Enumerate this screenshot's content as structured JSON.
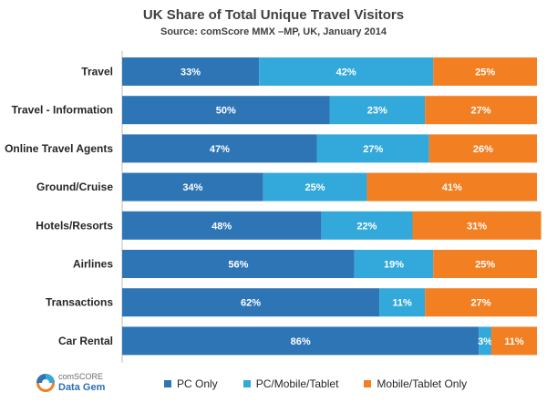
{
  "chart_data": {
    "type": "bar",
    "orientation": "horizontal",
    "stacked": "100%",
    "title": "UK Share of Total Unique Travel Visitors",
    "subtitle": "Source: comScore MMX –MP, UK, January 2014",
    "categories": [
      "Travel",
      "Travel - Information",
      "Online Travel Agents",
      "Ground/Cruise",
      "Hotels/Resorts",
      "Airlines",
      "Transactions",
      "Car Rental"
    ],
    "series": [
      {
        "name": "PC Only",
        "color": "#2e75b6",
        "values": [
          33,
          50,
          47,
          34,
          48,
          56,
          62,
          86
        ]
      },
      {
        "name": "PC/Mobile/Tablet",
        "color": "#33a9db",
        "values": [
          42,
          23,
          27,
          25,
          22,
          19,
          11,
          3
        ]
      },
      {
        "name": "Mobile/Tablet Only",
        "color": "#f27f22",
        "values": [
          25,
          27,
          26,
          41,
          31,
          25,
          27,
          11
        ]
      }
    ],
    "value_suffix": "%",
    "xlim": [
      0,
      100
    ],
    "legend_position": "bottom"
  },
  "logo": {
    "line1": "comSCORE",
    "line2": "Data Gem"
  }
}
